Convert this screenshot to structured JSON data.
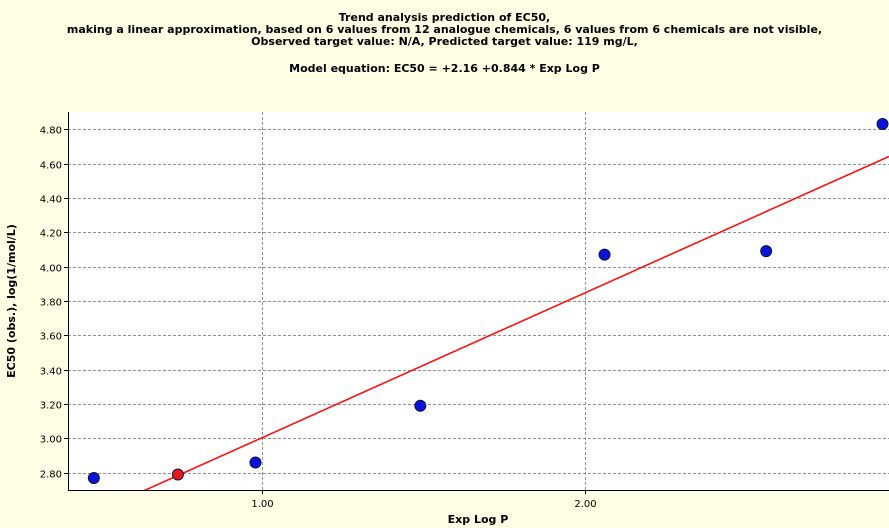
{
  "chart_data": {
    "type": "scatter",
    "title_lines": [
      "Trend analysis prediction of EC50,",
      "making a linear approximation, based on 6 values from 12 analogue chemicals, 6 values from 6 chemicals are not visible,",
      "Observed target value: N/A, Predicted target value: 119 mg/L,"
    ],
    "equation": "Model equation:  EC50 = +2.16 +0.844 * Exp Log P",
    "xlabel": "Exp Log P",
    "ylabel": "EC50 (obs.), log(1/mol/L)",
    "xlim": [
      0.4,
      2.94
    ],
    "ylim": [
      2.7,
      4.9
    ],
    "x_ticks": [
      1.0,
      2.0
    ],
    "x_tick_labels": [
      "1.00",
      "2.00"
    ],
    "y_ticks": [
      2.8,
      3.0,
      3.2,
      3.4,
      3.6,
      3.8,
      4.0,
      4.2,
      4.4,
      4.6,
      4.8
    ],
    "y_tick_labels": [
      "2.80",
      "3.00",
      "3.20",
      "3.40",
      "3.60",
      "3.80",
      "4.00",
      "4.20",
      "4.40",
      "4.60",
      "4.80"
    ],
    "grid": true,
    "series": [
      {
        "color": "#0A14D8",
        "points": [
          {
            "x": 0.48,
            "y": 2.77
          },
          {
            "x": 0.98,
            "y": 2.86
          },
          {
            "x": 1.49,
            "y": 3.19
          },
          {
            "x": 2.06,
            "y": 4.07
          },
          {
            "x": 2.56,
            "y": 4.09
          },
          {
            "x": 2.92,
            "y": 4.83
          }
        ]
      },
      {
        "color": "#E8141E",
        "points": [
          {
            "x": 0.74,
            "y": 2.79
          }
        ]
      }
    ],
    "regression": {
      "intercept": 2.16,
      "slope": 0.844,
      "color": "#FF1010"
    }
  },
  "colors": {
    "background": "#FFFFE5",
    "plot_background": "#FFFFFF",
    "grid": "#909090"
  }
}
